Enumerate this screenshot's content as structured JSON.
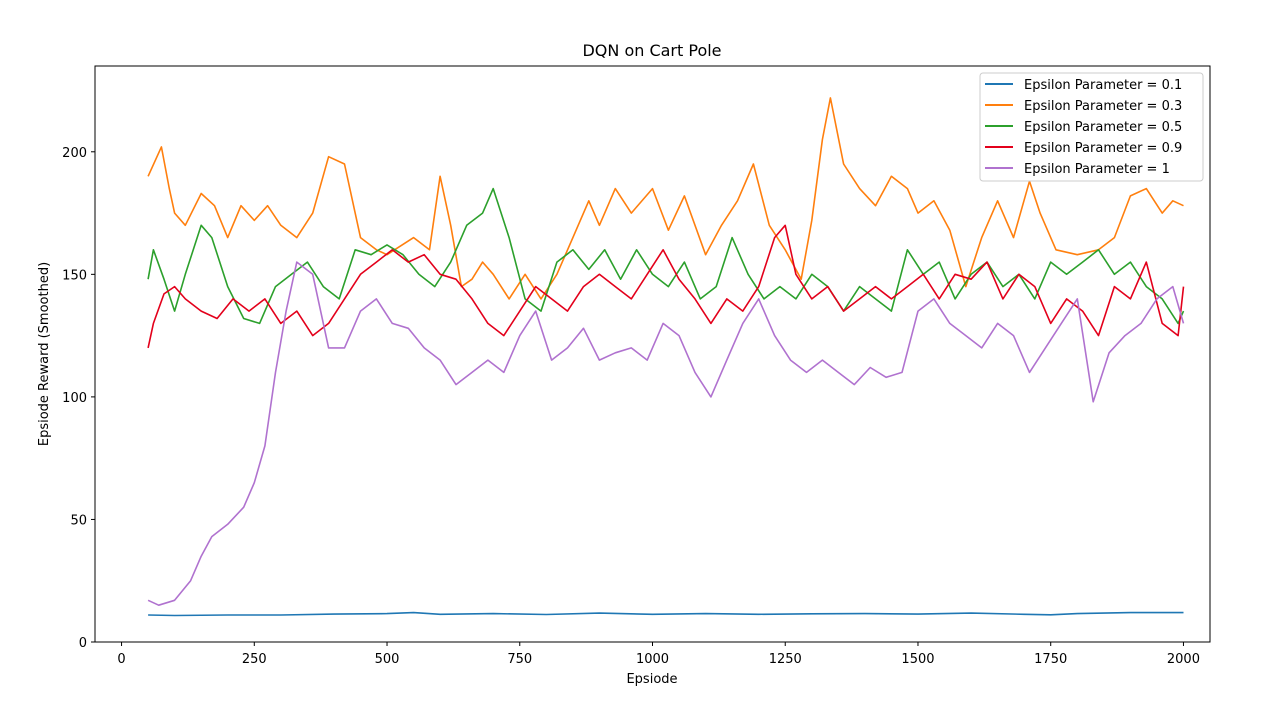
{
  "chart_data": {
    "type": "line",
    "title": "DQN on Cart Pole",
    "xlabel": "Epsiode",
    "ylabel": "Epsiode Reward (Smoothed)",
    "xlim": [
      -50,
      2050
    ],
    "ylim": [
      0,
      235
    ],
    "xticks": [
      0,
      250,
      500,
      750,
      1000,
      1250,
      1500,
      1750,
      2000
    ],
    "yticks": [
      0,
      50,
      100,
      150,
      200
    ],
    "grid": false,
    "legend_position": "top-right",
    "series": [
      {
        "name": "Epsilon Parameter = 0.1",
        "color": "#1f77b4",
        "x": [
          50,
          100,
          200,
          300,
          400,
          500,
          550,
          600,
          700,
          800,
          900,
          1000,
          1100,
          1200,
          1300,
          1400,
          1500,
          1600,
          1700,
          1750,
          1800,
          1900,
          2000
        ],
        "y": [
          11,
          10.8,
          11,
          11,
          11.4,
          11.6,
          12,
          11.3,
          11.6,
          11.2,
          11.8,
          11.3,
          11.6,
          11.3,
          11.5,
          11.6,
          11.4,
          11.8,
          11.3,
          11.1,
          11.6,
          12,
          12
        ]
      },
      {
        "name": "Epsilon Parameter = 0.3",
        "color": "#ff7f0e",
        "x": [
          50,
          75,
          90,
          100,
          120,
          150,
          175,
          200,
          225,
          250,
          275,
          300,
          330,
          360,
          390,
          420,
          450,
          480,
          500,
          550,
          580,
          600,
          620,
          640,
          660,
          680,
          700,
          730,
          760,
          790,
          820,
          850,
          880,
          900,
          930,
          960,
          1000,
          1030,
          1060,
          1100,
          1130,
          1160,
          1190,
          1220,
          1250,
          1280,
          1300,
          1320,
          1335,
          1360,
          1390,
          1420,
          1450,
          1480,
          1500,
          1530,
          1560,
          1590,
          1620,
          1650,
          1680,
          1710,
          1730,
          1760,
          1800,
          1840,
          1870,
          1900,
          1930,
          1960,
          1980,
          2000
        ],
        "y": [
          190,
          202,
          185,
          175,
          170,
          183,
          178,
          165,
          178,
          172,
          178,
          170,
          165,
          175,
          198,
          195,
          165,
          160,
          158,
          165,
          160,
          190,
          170,
          145,
          148,
          155,
          150,
          140,
          150,
          140,
          150,
          165,
          180,
          170,
          185,
          175,
          185,
          168,
          182,
          158,
          170,
          180,
          195,
          170,
          160,
          148,
          172,
          205,
          222,
          195,
          185,
          178,
          190,
          185,
          175,
          180,
          168,
          145,
          165,
          180,
          165,
          188,
          175,
          160,
          158,
          160,
          165,
          182,
          185,
          175,
          180,
          178
        ]
      },
      {
        "name": "Epsilon Parameter = 0.5",
        "color": "#2ca02c",
        "x": [
          50,
          60,
          80,
          100,
          120,
          150,
          170,
          200,
          230,
          260,
          290,
          320,
          350,
          380,
          410,
          440,
          470,
          500,
          530,
          560,
          590,
          620,
          650,
          680,
          700,
          730,
          760,
          790,
          820,
          850,
          880,
          910,
          940,
          970,
          1000,
          1030,
          1060,
          1090,
          1120,
          1150,
          1180,
          1210,
          1240,
          1270,
          1300,
          1330,
          1360,
          1390,
          1420,
          1450,
          1480,
          1510,
          1540,
          1570,
          1600,
          1630,
          1660,
          1690,
          1720,
          1750,
          1780,
          1810,
          1840,
          1870,
          1900,
          1930,
          1960,
          1990,
          2000
        ],
        "y": [
          148,
          160,
          148,
          135,
          150,
          170,
          165,
          145,
          132,
          130,
          145,
          150,
          155,
          145,
          140,
          160,
          158,
          162,
          158,
          150,
          145,
          155,
          170,
          175,
          185,
          165,
          140,
          135,
          155,
          160,
          152,
          160,
          148,
          160,
          150,
          145,
          155,
          140,
          145,
          165,
          150,
          140,
          145,
          140,
          150,
          145,
          135,
          145,
          140,
          135,
          160,
          150,
          155,
          140,
          150,
          155,
          145,
          150,
          140,
          155,
          150,
          155,
          160,
          150,
          155,
          145,
          140,
          130,
          135
        ]
      },
      {
        "name": "Epsilon Parameter = 0.9",
        "color": "#e3001b",
        "x": [
          50,
          60,
          80,
          100,
          120,
          150,
          180,
          210,
          240,
          270,
          300,
          330,
          360,
          390,
          420,
          450,
          480,
          510,
          540,
          570,
          600,
          630,
          660,
          690,
          720,
          750,
          780,
          810,
          840,
          870,
          900,
          930,
          960,
          990,
          1020,
          1050,
          1080,
          1110,
          1140,
          1170,
          1200,
          1230,
          1250,
          1270,
          1300,
          1330,
          1360,
          1390,
          1420,
          1450,
          1480,
          1510,
          1540,
          1570,
          1600,
          1630,
          1660,
          1690,
          1720,
          1750,
          1780,
          1810,
          1840,
          1870,
          1900,
          1930,
          1960,
          1990,
          2000
        ],
        "y": [
          120,
          130,
          142,
          145,
          140,
          135,
          132,
          140,
          135,
          140,
          130,
          135,
          125,
          130,
          140,
          150,
          155,
          160,
          155,
          158,
          150,
          148,
          140,
          130,
          125,
          135,
          145,
          140,
          135,
          145,
          150,
          145,
          140,
          150,
          160,
          148,
          140,
          130,
          140,
          135,
          145,
          165,
          170,
          150,
          140,
          145,
          135,
          140,
          145,
          140,
          145,
          150,
          140,
          150,
          148,
          155,
          140,
          150,
          145,
          130,
          140,
          135,
          125,
          145,
          140,
          155,
          130,
          125,
          145
        ]
      },
      {
        "name": "Epsilon Parameter = 1",
        "color": "#b072cf",
        "x": [
          50,
          70,
          100,
          130,
          150,
          170,
          200,
          230,
          250,
          270,
          290,
          310,
          330,
          360,
          390,
          420,
          450,
          480,
          510,
          540,
          570,
          600,
          630,
          660,
          690,
          720,
          750,
          780,
          810,
          840,
          870,
          900,
          930,
          960,
          990,
          1020,
          1050,
          1080,
          1110,
          1140,
          1170,
          1200,
          1230,
          1260,
          1290,
          1320,
          1350,
          1380,
          1410,
          1440,
          1470,
          1500,
          1530,
          1560,
          1590,
          1620,
          1650,
          1680,
          1710,
          1740,
          1770,
          1800,
          1830,
          1860,
          1890,
          1920,
          1950,
          1980,
          2000
        ],
        "y": [
          17,
          15,
          17,
          25,
          35,
          43,
          48,
          55,
          65,
          80,
          110,
          135,
          155,
          150,
          120,
          120,
          135,
          140,
          130,
          128,
          120,
          115,
          105,
          110,
          115,
          110,
          125,
          135,
          115,
          120,
          128,
          115,
          118,
          120,
          115,
          130,
          125,
          110,
          100,
          115,
          130,
          140,
          125,
          115,
          110,
          115,
          110,
          105,
          112,
          108,
          110,
          135,
          140,
          130,
          125,
          120,
          130,
          125,
          110,
          120,
          130,
          140,
          98,
          118,
          125,
          130,
          140,
          145,
          130
        ]
      }
    ]
  }
}
